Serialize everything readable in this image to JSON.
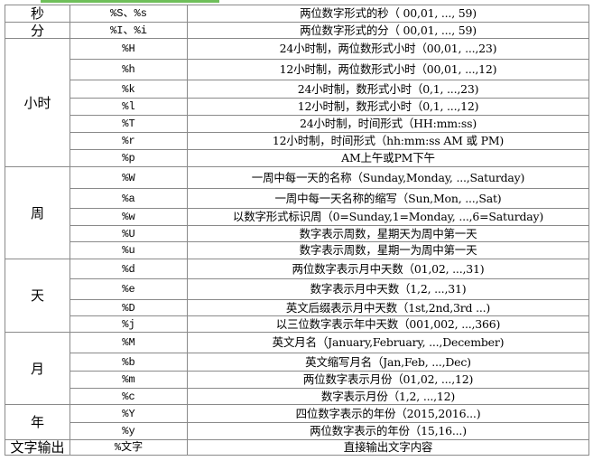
{
  "groups": [
    {
      "category": "秒",
      "rows": [
        {
          "code": "%S、%s",
          "desc": "两位数字形式的秒（ 00,01, ..., 59)"
        }
      ]
    },
    {
      "category": "分",
      "rows": [
        {
          "code": "%I、%i",
          "desc": "两位数字形式的分（ 00,01, ..., 59)"
        }
      ]
    },
    {
      "category": "小时",
      "rows": [
        {
          "code": "%H",
          "desc": "24小时制，两位数形式小时（00,01, ...,23)"
        },
        {
          "code": "%h",
          "desc": "12小时制，两位数形式小时（00,01, ...,12)"
        },
        {
          "code": "%k",
          "desc": "24小时制，数形式小时（0,1, ...,23)"
        },
        {
          "code": "%l",
          "desc": "12小时制，数形式小时（0,1, ...,12)"
        },
        {
          "code": "%T",
          "desc": "24小时制，时间形式（HH:mm:ss)"
        },
        {
          "code": "%r",
          "desc": "12小时制，时间形式（hh:mm:ss AM 或 PM)"
        },
        {
          "code": "%p",
          "desc": "AM上午或PM下午"
        }
      ]
    },
    {
      "category": "周",
      "rows": [
        {
          "code": "%W",
          "desc": "一周中每一天的名称（Sunday,Monday, ...,Saturday)"
        },
        {
          "code": "%a",
          "desc": "一周中每一天名称的缩写（Sun,Mon, ...,Sat)"
        },
        {
          "code": "%w",
          "desc": "以数字形式标识周（0=Sunday,1=Monday, ...,6=Saturday)"
        },
        {
          "code": "%U",
          "desc": "数字表示周数，星期天为周中第一天"
        },
        {
          "code": "%u",
          "desc": "数字表示周数，星期一为周中第一天"
        }
      ]
    },
    {
      "category": "天",
      "rows": [
        {
          "code": "%d",
          "desc": "两位数字表示月中天数（01,02, ...,31)"
        },
        {
          "code": "%e",
          "desc": "数字表示月中天数（1,2, ...,31)"
        },
        {
          "code": "%D",
          "desc": "英文后缀表示月中天数（1st,2nd,3rd ...)"
        },
        {
          "code": "%j",
          "desc": "以三位数字表示年中天数（001,002, ...,366)"
        }
      ]
    },
    {
      "category": "月",
      "rows": [
        {
          "code": "%M",
          "desc": "英文月名（January,February, ...,December)"
        },
        {
          "code": "%b",
          "desc": "英文缩写月名（Jan,Feb, ...,Dec)"
        },
        {
          "code": "%m",
          "desc": "两位数字表示月份（01,02, ...,12)"
        },
        {
          "code": "%c",
          "desc": "数字表示月份（1,2, ...,12)"
        }
      ]
    },
    {
      "category": "年",
      "rows": [
        {
          "code": "%Y",
          "desc": "四位数字表示的年份（2015,2016...)"
        },
        {
          "code": "%y",
          "desc": "两位数字表示的年份（15,16...)"
        }
      ]
    },
    {
      "category": "文字输出",
      "rows": [
        {
          "code": "%文字",
          "desc": "直接输出文字内容"
        }
      ]
    }
  ]
}
